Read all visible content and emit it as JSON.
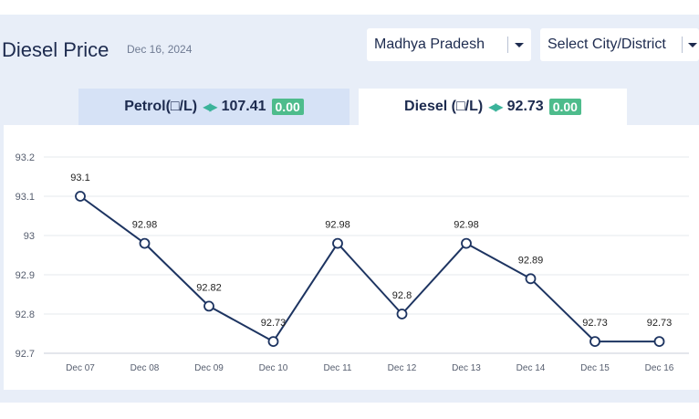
{
  "header": {
    "title": "Diesel Price",
    "date": "Dec 16, 2024"
  },
  "filters": {
    "state": "Madhya Pradesh",
    "city_placeholder": "Select City/District"
  },
  "tabs": [
    {
      "label": "Petrol(□/L)",
      "value": "107.41",
      "change": "0.00",
      "active": false
    },
    {
      "label": "Diesel (□/L)",
      "value": "92.73",
      "change": "0.00",
      "active": true
    }
  ],
  "colors": {
    "line": "#1d3461",
    "change_badge": "#4ebc8c",
    "arrows": "#3bb39a"
  },
  "chart_data": {
    "type": "line",
    "categories": [
      "Dec 07",
      "Dec 08",
      "Dec 09",
      "Dec 10",
      "Dec 11",
      "Dec 12",
      "Dec 13",
      "Dec 14",
      "Dec 15",
      "Dec 16"
    ],
    "values": [
      93.1,
      92.98,
      92.82,
      92.73,
      92.98,
      92.8,
      92.98,
      92.89,
      92.73,
      92.73
    ],
    "data_labels": [
      "93.1",
      "92.98",
      "92.82",
      "92.73",
      "92.98",
      "92.8",
      "92.98",
      "92.89",
      "92.73",
      "92.73"
    ],
    "yticks": [
      92.7,
      92.8,
      92.9,
      93,
      93.1,
      93.2
    ],
    "ytick_labels": [
      "92.7",
      "92.8",
      "92.9",
      "93",
      "93.1",
      "93.2"
    ],
    "ylim": [
      92.7,
      93.2
    ],
    "grid": true,
    "title": "",
    "xlabel": "",
    "ylabel": ""
  }
}
